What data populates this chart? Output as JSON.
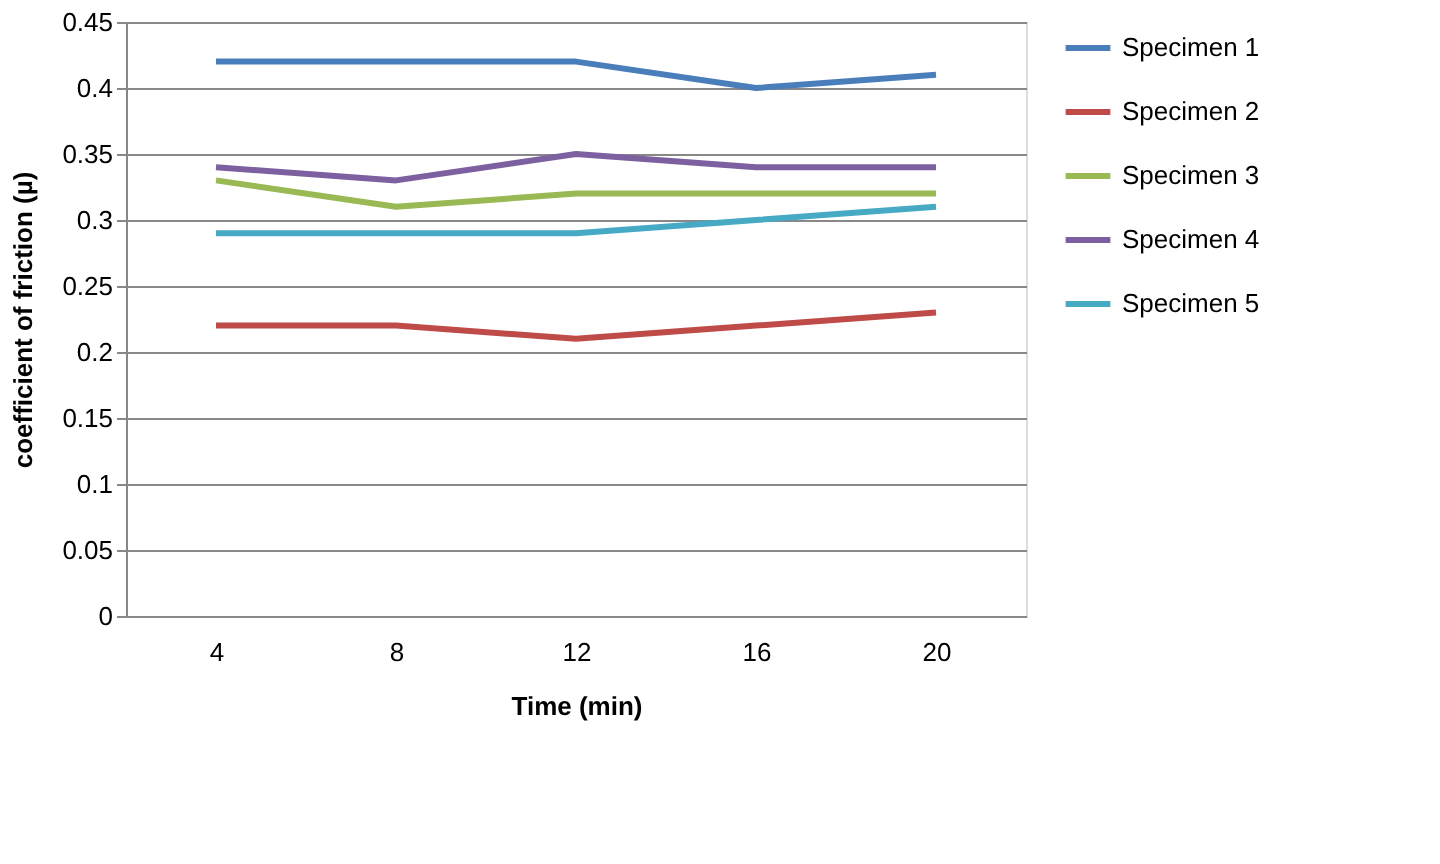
{
  "chart_data": {
    "type": "line",
    "xlabel": "Time (min)",
    "ylabel": "coefficient of friction (µ)",
    "categories": [
      "4",
      "8",
      "12",
      "16",
      "20"
    ],
    "series": [
      {
        "name": "Specimen 1",
        "color": "#4a7ebb",
        "values": [
          0.42,
          0.42,
          0.42,
          0.4,
          0.41
        ]
      },
      {
        "name": "Specimen 2",
        "color": "#be4b48",
        "values": [
          0.22,
          0.22,
          0.21,
          0.22,
          0.23
        ]
      },
      {
        "name": "Specimen 3",
        "color": "#98b954",
        "values": [
          0.33,
          0.31,
          0.32,
          0.32,
          0.32
        ]
      },
      {
        "name": "Specimen 4",
        "color": "#7d60a0",
        "values": [
          0.34,
          0.33,
          0.35,
          0.34,
          0.34
        ]
      },
      {
        "name": "Specimen 5",
        "color": "#46aac5",
        "values": [
          0.29,
          0.29,
          0.29,
          0.3,
          0.31
        ]
      }
    ],
    "ylim": [
      0,
      0.45
    ],
    "yticks": [
      0,
      0.05,
      0.1,
      0.15,
      0.2,
      0.25,
      0.3,
      0.35,
      0.4,
      0.45
    ],
    "grid": "y",
    "legend": "right",
    "marker": "none",
    "line_style": "solid"
  }
}
